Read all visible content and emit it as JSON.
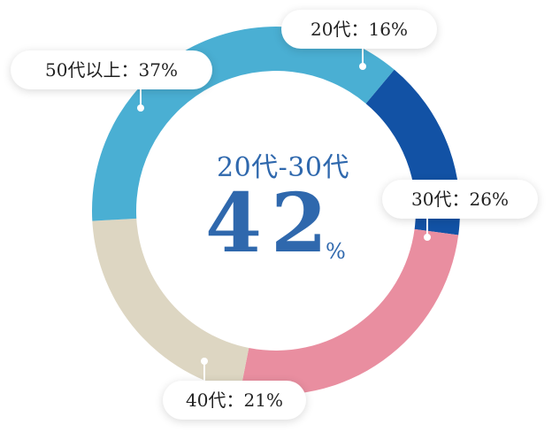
{
  "chart_data": {
    "type": "pie",
    "categories": [
      "20代",
      "30代",
      "40代",
      "50代以上"
    ],
    "values": [
      16,
      26,
      21,
      37
    ],
    "colors": [
      "#1252a5",
      "#e98ea0",
      "#ddd6c2",
      "#4aafd3"
    ],
    "labels": [
      "20代：16%",
      "30代：26%",
      "40代：21%",
      "50代以上：37%"
    ],
    "center": {
      "label": "20代-30代",
      "value": "42",
      "unit": "%"
    }
  }
}
